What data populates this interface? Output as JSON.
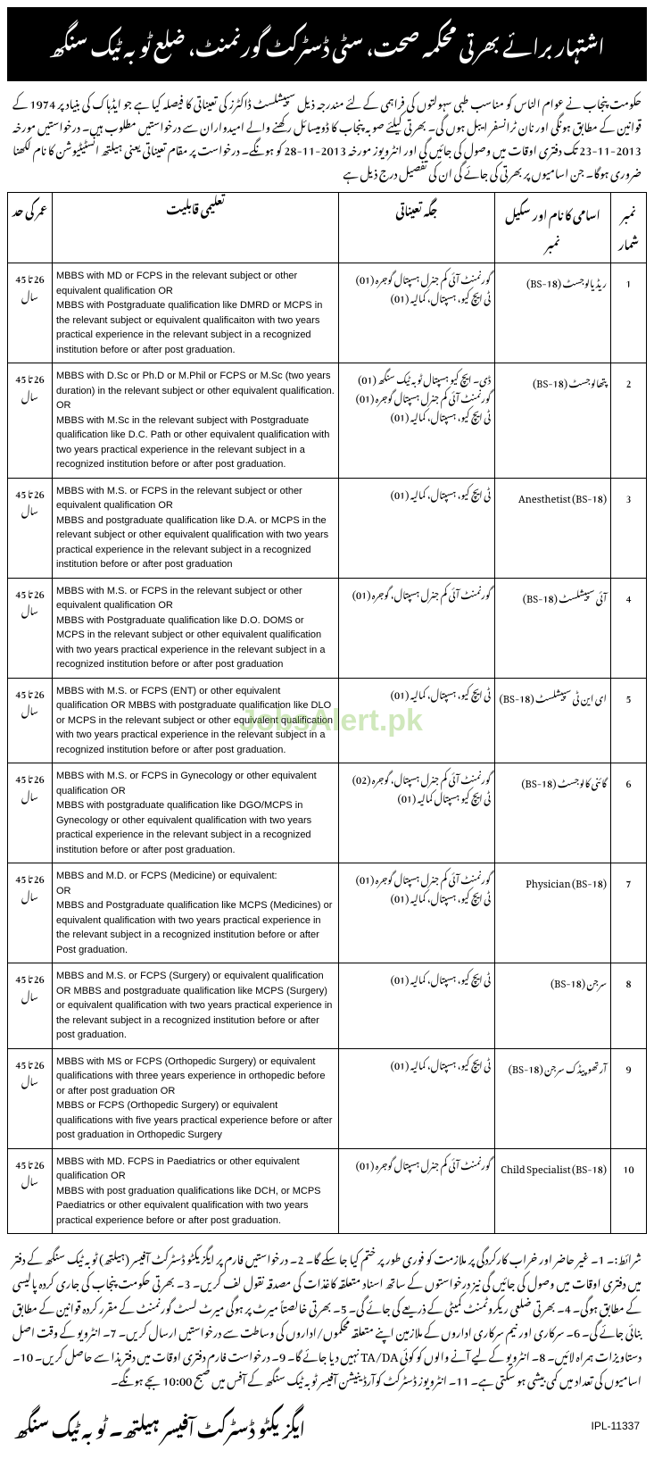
{
  "header": "اشتہار برائے بھرتی محکمہ صحت، سٹی ڈسٹرکٹ گورنمنٹ، ضلع ٹوبہ ٹیک سنگھ",
  "intro": "حکومت پنجاب نے عوام الناس کو مناسب طبی سہولتوں کی فراہمی کے لئے مندرجہ ذیل سپیشلسٹ ڈاکٹرز کی تعیناتی کا فیصلہ کیا ہے جو ایڈہاک کی بنیاد پر 1974 کے قوانین کے مطابق ہونگی اور نان ٹرانسفر ایبل ہوں گی۔ بھرتی کیلئے صوبہ پنجاب کا ڈومیسائل رکھنے والے امیدواران سے درخواستیں مطلوب ہیں۔ درخواستیں مورخہ 2013-11-23 تک دفتری اوقات میں وصول کی جائیں گی اور انٹرویوز مورخہ 2013-11-28 کو ہونگے۔ درخواست پر مقام تعیناتی یعنی ہیلتھ انسٹیٹیوشن کا نام لکھنا ضروری ہوگا۔ جن اسامیوں پر بھرتی کی جائے گی ان کی تفصیل درج ذیل ہے",
  "columns": {
    "sr": "نمبر شمار",
    "post": "اسامی کا نام اور سکیل نمبر",
    "place": "جگہ تعیناتی",
    "edu": "تعلیمی قابلیت",
    "age": "عمر کی حد"
  },
  "age_text": "26 تا 45 سال",
  "rows": [
    {
      "sr": "1",
      "post": "ریڈیالوجسٹ (BS-18)",
      "place": "گورنمنٹ آئی کم جنرل ہسپتال گوجرہ (01)\nٹی ایچ کیو، ہسپتال، کمالیہ (01)",
      "edu": "MBBS with MD or FCPS in the relevant subject or other equivalent qualification OR\nMBBS with Postgraduate qualification like DMRD or MCPS in the relevant subject or equivalent qualificaiton with two years practical experience in the relevant subject in a recognized institution before or after post graduation."
    },
    {
      "sr": "2",
      "post": "پتھالوجسٹ (BS-18)",
      "place": "ڈی۔ ایچ کیو ہسپتال ٹوبہ ٹیک سنگھ (01)\nگورنمنٹ آئی کم جنرل ہسپتال گوجرہ (01)\nٹی ایچ کیو، ہسپتال، کمالیہ (01)",
      "edu": "MBBS with D.Sc or Ph.D or M.Phil or FCPS or M.Sc (two years duration) in the relevant subject or other equivalent qualification. OR\nMBBS with M.Sc in the relevant subject with Postgraduate qualification like D.C. Path or other equivalent qualification with two years practical experience in the relevant subject in a recognized institution before or after post graduation."
    },
    {
      "sr": "3",
      "post": "Anesthetist (BS-18)",
      "place": "ٹی ایچ کیو، ہسپتال، کمالیہ (01)",
      "edu": "MBBS with M.S. or FCPS in the relevant subject or other equivalent qualification OR\nMBBS and postgraduate qualification like D.A. or MCPS in the relevant subject or other equivalent qualification with two years practical experience in the relevant subject in a recognized institution before or after post graduation"
    },
    {
      "sr": "4",
      "post": "آئی سپیشلسٹ (BS-18)",
      "place": "گورنمنٹ آئی کم جنرل ہسپتال، گوجرہ (01)",
      "edu": "MBBS with M.S. or FCPS in the relevant subject or other equivalent qualification OR\nMBBS with Postgraduate qualification like D.O. DOMS or MCPS in the relevant subject or other equivalent qualification with two years practical experience in the relevant subject in a recognized institution before or after post graduation"
    },
    {
      "sr": "5",
      "post": "ای این ٹی سپیشلسٹ (BS-18)",
      "place": "ٹی ایچ کیو، ہسپتال، کمالیہ (01)",
      "edu": "MBBS with M.S. or FCPS (ENT) or other equivalent qualification OR MBBS with postgraduate qualification like DLO or MCPS in the relevant subject or other equivalent qualification with two years practical experience in the relevant subject in a recognized institution before or after post graduation."
    },
    {
      "sr": "6",
      "post": "گائنی کالوجسٹ (BS-18)",
      "place": "گورنمنٹ آئی کم جنرل ہسپتال، گوجرہ (02)\nٹی ایچ کیو ہسپتال کمالیہ (01)",
      "edu": "MBBS with M.S. or FCPS in Gynecology or other equivalent qualification OR\nMBBS with postgraduate qualification like DGO/MCPS in Gynecology or other equivalent qualification with two years practical experience in the relevant subject in a recognized institution before or after post graduation."
    },
    {
      "sr": "7",
      "post": "Physician (BS-18)",
      "place": "گورنمنٹ آئی کم جنرل ہسپتال گوجرہ (01)\nٹی ایچ کیو، ہسپتال، کمالیہ (01)",
      "edu": "MBBS and M.D. or FCPS (Medicine) or equivalent:\nOR\nMBBS and Postgraduate qualification like MCPS (Medicines) or equivalent qualification with two years practical experience in the relevant subject in a recognized institution before or after Post graduation."
    },
    {
      "sr": "8",
      "post": "سرجن (BS-18)",
      "place": "ٹی ایچ کیو، ہسپتال، کمالیہ (01)",
      "edu": "MBBS and M.S. or FCPS (Surgery) or equivalent qualification OR MBBS and postgraduate qualification like MCPS (Surgery) or equivalent qualification with two years practical experience in the relevant subject in a recognized institution before or after post graduation."
    },
    {
      "sr": "9",
      "post": "آرتھوپیڈک سرجن (BS-18)",
      "place": "ٹی ایچ کیو، ہسپتال، کمالیہ (01)",
      "edu": "MBBS with MS or FCPS (Orthopedic Surgery) or equivalent qualifications with three years experience in orthopedic before or after post graduation OR\nMBBS or FCPS (Orthopedic Surgery) or equivalent qualifications with five years practical experience before or after post graduation in Orthopedic Surgery"
    },
    {
      "sr": "10",
      "post": "Child Specialist (BS-18)",
      "place": "گورنمنٹ آئی کم جنرل ہسپتال گوجرہ (01)",
      "edu": "MBBS with MD. FCPS in Paediatrics or other equivalent qualification OR\nMBBS with post graduation qualifications like DCH, or MCPS Paediatrics or other equivalent qualification with two years practical experience before or after post graduation."
    }
  ],
  "conditions": "شرائط:۔ 1۔ غیر حاضر اور خراب کارکردگی پر ملازمت کو فوری طور پر ختم کیا جا سکے گا۔ 2۔ درخواستیں فارم پر ایگزیکٹو ڈسٹرکٹ آفیسر (ہیلتھ) ٹوبہ ٹیک سنگھ کے دفتر میں دفتری اوقات میں وصول کی جائیں گی نیز درخواستوں کے ساتھ اسناد متعلقہ کاغذات کی مصدقہ نقول لف کریں۔ 3۔ بھرتی حکومت پنجاب کی جاری کردہ پالیسی کے مطابق ہوگی۔ 4۔ بھرتی ضلعی ریکروٹمنٹ کمیٹی کے ذریعے کی جائے گی۔ 5۔ بھرتی خالصتاً میرٹ پر ہوگی میرٹ لسٹ گورنمنٹ کے مقرر کردہ قوانین کے مطابق بنائی جائے گی۔ 6۔ سرکاری اور نیم سرکاری اداروں کے ملازمین اپنے متعلقہ محکموں/اداروں کی وساطت سے درخواستیں ارسال کریں۔ 7۔ انٹرویو کے وقت اصل دستاویزات ہمراہ لائیں۔ 8۔ انٹرویو کے لیے آنے والوں کو کوئی TA/DA نہیں دیا جائے گا۔ 9۔ درخواست فارم دفتری اوقات میں دفتر ہذا سے حاصل کریں۔ 10۔ اسامیوں کی تعداد میں کمی بیشی ہو سکتی ہے۔ 11۔ انٹرویوز ڈسٹرکٹ کوآرڈینیشن آفیسر ٹوبہ ٹیک سنگھ کے آفس میں صبح 10:00 بجے ہونگے۔",
  "signature": "ایگزیکٹو ڈسٹرکٹ آفیسر ہیلتھ۔ ٹوبہ ٹیک سنگھ",
  "ipl": "IPL-11337",
  "watermark": "JobsAlert.pk"
}
